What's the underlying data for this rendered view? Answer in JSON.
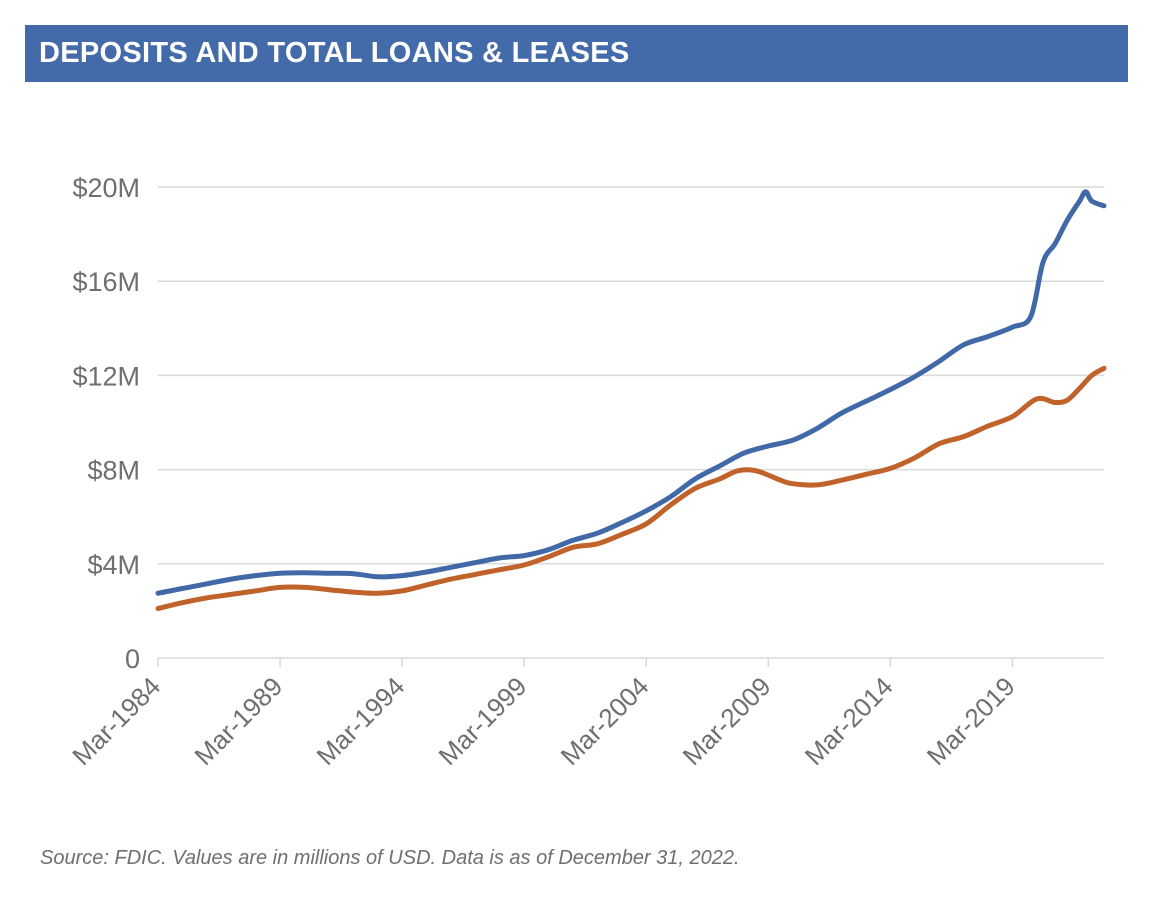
{
  "header": {
    "title": "DEPOSITS AND TOTAL LOANS & LEASES"
  },
  "footer": {
    "source": "Source: FDIC. Values are in millions of USD. Data is as of December 31, 2022."
  },
  "colors": {
    "header_bg": "#436aa9",
    "deposits_line": "#4169a8",
    "loans_line": "#c0622a",
    "grid": "#d9d9d9",
    "axis_text": "#6f6f6f"
  },
  "chart_data": {
    "type": "line",
    "title": "DEPOSITS AND TOTAL LOANS & LEASES",
    "xlabel": "",
    "ylabel": "",
    "grid": true,
    "legend": "none",
    "x_range": [
      1984.0,
      2022.75
    ],
    "ylim": [
      0,
      20
    ],
    "y_ticks": [
      0,
      4,
      8,
      12,
      16,
      20
    ],
    "y_tick_labels": [
      "0",
      "$4M",
      "$8M",
      "$12M",
      "$16M",
      "$20M"
    ],
    "x_ticks": [
      1984,
      1989,
      1994,
      1999,
      2004,
      2009,
      2014,
      2019
    ],
    "x_tick_labels": [
      "Mar-1984",
      "Mar-1989",
      "Mar-1994",
      "Mar-1999",
      "Mar-2004",
      "Mar-2009",
      "Mar-2014",
      "Mar-2019"
    ],
    "series": [
      {
        "key": "deposits",
        "color": "#4169a8",
        "points": [
          [
            1984.0,
            2.75
          ],
          [
            1985.0,
            2.95
          ],
          [
            1986.0,
            3.15
          ],
          [
            1987.0,
            3.35
          ],
          [
            1988.0,
            3.5
          ],
          [
            1989.0,
            3.6
          ],
          [
            1990.0,
            3.62
          ],
          [
            1991.0,
            3.6
          ],
          [
            1992.0,
            3.58
          ],
          [
            1993.0,
            3.45
          ],
          [
            1994.0,
            3.5
          ],
          [
            1995.0,
            3.65
          ],
          [
            1996.0,
            3.85
          ],
          [
            1997.0,
            4.05
          ],
          [
            1998.0,
            4.25
          ],
          [
            1999.0,
            4.35
          ],
          [
            2000.0,
            4.6
          ],
          [
            2001.0,
            5.0
          ],
          [
            2002.0,
            5.3
          ],
          [
            2003.0,
            5.75
          ],
          [
            2004.0,
            6.25
          ],
          [
            2005.0,
            6.85
          ],
          [
            2006.0,
            7.6
          ],
          [
            2007.0,
            8.15
          ],
          [
            2008.0,
            8.7
          ],
          [
            2009.0,
            9.0
          ],
          [
            2010.0,
            9.25
          ],
          [
            2011.0,
            9.75
          ],
          [
            2012.0,
            10.4
          ],
          [
            2013.0,
            10.9
          ],
          [
            2014.0,
            11.4
          ],
          [
            2015.0,
            11.95
          ],
          [
            2016.0,
            12.6
          ],
          [
            2017.0,
            13.3
          ],
          [
            2018.0,
            13.65
          ],
          [
            2019.0,
            14.05
          ],
          [
            2019.75,
            14.5
          ],
          [
            2020.25,
            16.8
          ],
          [
            2020.75,
            17.6
          ],
          [
            2021.25,
            18.6
          ],
          [
            2021.75,
            19.4
          ],
          [
            2022.0,
            19.8
          ],
          [
            2022.25,
            19.4
          ],
          [
            2022.75,
            19.2
          ]
        ]
      },
      {
        "key": "loans_leases",
        "color": "#c0622a",
        "points": [
          [
            1984.0,
            2.1
          ],
          [
            1985.0,
            2.35
          ],
          [
            1986.0,
            2.55
          ],
          [
            1987.0,
            2.7
          ],
          [
            1988.0,
            2.85
          ],
          [
            1989.0,
            3.0
          ],
          [
            1990.0,
            3.0
          ],
          [
            1991.0,
            2.9
          ],
          [
            1992.0,
            2.8
          ],
          [
            1993.0,
            2.75
          ],
          [
            1994.0,
            2.85
          ],
          [
            1995.0,
            3.1
          ],
          [
            1996.0,
            3.35
          ],
          [
            1997.0,
            3.55
          ],
          [
            1998.0,
            3.75
          ],
          [
            1999.0,
            3.95
          ],
          [
            2000.0,
            4.3
          ],
          [
            2001.0,
            4.7
          ],
          [
            2002.0,
            4.85
          ],
          [
            2003.0,
            5.25
          ],
          [
            2004.0,
            5.7
          ],
          [
            2005.0,
            6.5
          ],
          [
            2006.0,
            7.2
          ],
          [
            2007.0,
            7.6
          ],
          [
            2007.75,
            7.95
          ],
          [
            2008.5,
            7.95
          ],
          [
            2009.5,
            7.55
          ],
          [
            2010.0,
            7.4
          ],
          [
            2011.0,
            7.35
          ],
          [
            2012.0,
            7.55
          ],
          [
            2013.0,
            7.8
          ],
          [
            2014.0,
            8.05
          ],
          [
            2015.0,
            8.5
          ],
          [
            2016.0,
            9.1
          ],
          [
            2017.0,
            9.4
          ],
          [
            2018.0,
            9.85
          ],
          [
            2019.0,
            10.25
          ],
          [
            2020.0,
            11.0
          ],
          [
            2020.75,
            10.85
          ],
          [
            2021.25,
            10.95
          ],
          [
            2021.75,
            11.45
          ],
          [
            2022.25,
            12.0
          ],
          [
            2022.75,
            12.3
          ]
        ]
      }
    ]
  }
}
